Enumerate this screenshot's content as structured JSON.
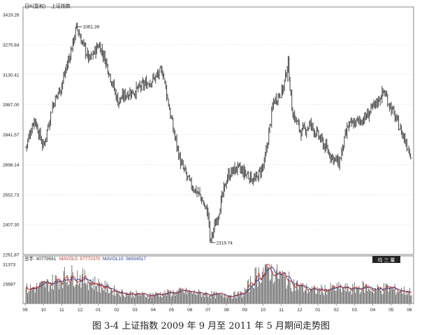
{
  "header": {
    "label": "日K(复权)",
    "index_name": "上证指数"
  },
  "price_panel": {
    "y_ticks": [
      "3419.26",
      "3275.84",
      "3130.41",
      "2987.00",
      "2841.57",
      "2696.14",
      "2552.73",
      "2407.30",
      "2261.87"
    ],
    "ylim": [
      2261.87,
      3419.26
    ],
    "high_label": "3361.39",
    "low_label": "2319.74"
  },
  "volume_panel": {
    "legend": {
      "total": "总手: 40779561",
      "mavol5": "MAVOL5: 57772370",
      "mavol10": "MAVOL10: 56934517"
    },
    "y_ticks": [
      "31373",
      "15687"
    ],
    "button_label": "均 三 量"
  },
  "x_axis": {
    "ticks": [
      "09",
      "10",
      "11",
      "12",
      "01",
      "02",
      "03",
      "04",
      "05",
      "06",
      "07",
      "08",
      "09",
      "10",
      "11",
      "12",
      "01",
      "02",
      "03",
      "04",
      "05",
      "06"
    ]
  },
  "caption": "图 3-4    上证指数 2009 年 9 月至 2011 年 5 月期间走势图",
  "colors": {
    "candle": "#444444",
    "mavol5": "#c0392b",
    "mavol10": "#1f3a93",
    "grid": "#bfbfbf",
    "axis": "#555555",
    "button_bg": "#222222",
    "button_text": "#ffffff"
  },
  "chart_data": {
    "type": "line",
    "title": "上证指数",
    "series": [
      {
        "name": "上证指数",
        "x": [
          "2009-09-01",
          "2009-09-15",
          "2009-09-30",
          "2009-10-15",
          "2009-10-30",
          "2009-11-15",
          "2009-11-24",
          "2009-12-01",
          "2009-12-15",
          "2009-12-31",
          "2010-01-11",
          "2010-01-31",
          "2010-02-15",
          "2010-02-28",
          "2010-03-15",
          "2010-03-31",
          "2010-04-15",
          "2010-04-30",
          "2010-05-15",
          "2010-05-31",
          "2010-06-15",
          "2010-06-30",
          "2010-07-02",
          "2010-07-15",
          "2010-07-31",
          "2010-08-15",
          "2010-08-31",
          "2010-09-15",
          "2010-09-30",
          "2010-10-15",
          "2010-10-31",
          "2010-11-08",
          "2010-11-15",
          "2010-11-30",
          "2010-12-15",
          "2010-12-31",
          "2011-01-15",
          "2011-01-31",
          "2011-02-15",
          "2011-02-28",
          "2011-03-15",
          "2011-03-31",
          "2011-04-15",
          "2011-04-30",
          "2011-05-15",
          "2011-05-31"
        ],
        "y": [
          2780,
          2920,
          2780,
          2980,
          3080,
          3250,
          3361.39,
          3300,
          3200,
          3277,
          3196,
          3000,
          3040,
          3050,
          3080,
          3110,
          3150,
          2900,
          2700,
          2600,
          2550,
          2450,
          2319.74,
          2450,
          2640,
          2680,
          2650,
          2620,
          2700,
          3000,
          3060,
          3186,
          2950,
          2850,
          2890,
          2820,
          2750,
          2700,
          2880,
          2900,
          2920,
          2980,
          3050,
          2950,
          2850,
          2740
        ]
      }
    ],
    "volume": {
      "total": 40779561,
      "mavol5": 57772370,
      "mavol10": 56934517,
      "ylim": [
        0,
        31373
      ],
      "approx_levels": [
        12000,
        14000,
        17000,
        22000,
        24000,
        20000,
        16000,
        12000,
        9000,
        8000,
        7000,
        8000,
        9000,
        10000,
        9000,
        8000,
        7000,
        7000,
        8000,
        22000,
        30000,
        24000,
        18000,
        13000,
        11000,
        12000,
        13000,
        12000,
        14000,
        12000,
        13000,
        11000,
        10000
      ]
    },
    "ylim": [
      2261.87,
      3419.26
    ],
    "annotations": [
      "3361.39",
      "2319.74"
    ]
  }
}
